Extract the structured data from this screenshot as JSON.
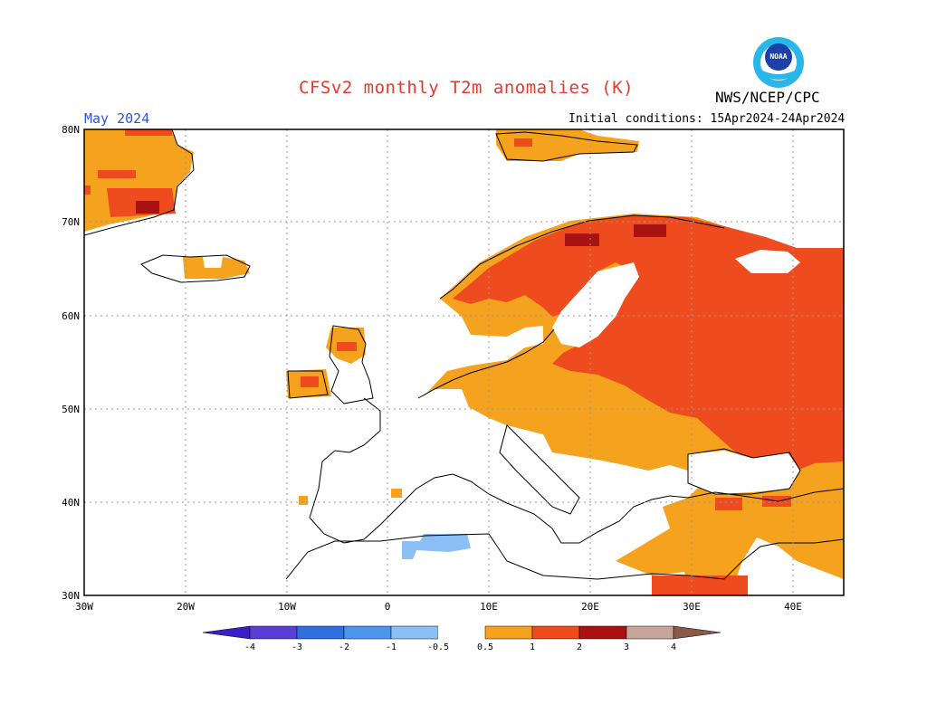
{
  "header": {
    "title": "CFSv2 monthly T2m anomalies (K)",
    "month": "May 2024",
    "agency": "NWS/NCEP/CPC",
    "initial_conditions": "Initial conditions: 15Apr2024-24Apr2024",
    "logo_text": "NOAA"
  },
  "map": {
    "lat_labels": [
      "80N",
      "70N",
      "60N",
      "50N",
      "40N",
      "30N"
    ],
    "lon_labels": [
      "30W",
      "20W",
      "10W",
      "0",
      "10E",
      "20E",
      "30E",
      "40E"
    ]
  },
  "legend": {
    "labels": [
      "-4",
      "-3",
      "-2",
      "-1",
      "-0.5",
      "0.5",
      "1",
      "2",
      "3",
      "4"
    ],
    "colors": {
      "below_-4": "#3a1fc8",
      "-4_-3": "#5a3fd6",
      "-3_-2": "#2f6fde",
      "-2_-1": "#4c96ec",
      "-1_-0.5": "#8bbff5",
      "0.5_1": "#f5a21f",
      "1_2": "#ee4b1f",
      "2_3": "#a81212",
      "3_4": "#c8a59a",
      "above_4": "#8a5a48"
    }
  }
}
